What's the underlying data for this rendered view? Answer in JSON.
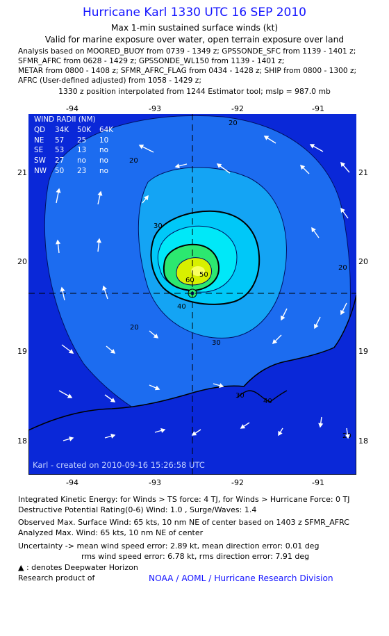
{
  "title": "Hurricane Karl 1330 UTC 16 SEP 2010",
  "subtitle1": "Max 1-min sustained surface winds (kt)",
  "subtitle2": "Valid for marine exposure over water, open terrain exposure over land",
  "analysis_lines": [
    "Analysis based on MOORED_BUOY from 0739 - 1349 z; GPSSONDE_SFC from 1139 - 1401 z;",
    "SFMR_AFRC from 0628 - 1429 z; GPSSONDE_WL150 from 1139 - 1401 z;",
    "METAR from 0800 - 1408 z; SFMR_AFRC_FLAG from 0434 - 1428 z; SHIP from 0800 - 1300 z;",
    "AFRC (User-defined adjusted) from 1058 - 1429 z;"
  ],
  "position_note": "1330 z position interpolated from 1244 Estimator tool; mslp = 987.0 mb",
  "map": {
    "lon_ticks": [
      "-94",
      "-93",
      "-92",
      "-91"
    ],
    "lat_ticks": [
      "21",
      "20",
      "19",
      "18"
    ],
    "contour_labels": [
      "20",
      "20",
      "30",
      "40",
      "50",
      "60",
      "20",
      "30",
      "40",
      "20",
      "30",
      "20"
    ],
    "created_label": "Karl - created on 2010-09-16 15:26:58 UTC",
    "wind_radii": {
      "title": "WIND RADII (NM)",
      "header": [
        "QD",
        "34K",
        "50K",
        "64K"
      ],
      "rows": [
        [
          "NE",
          "57",
          "25",
          "10"
        ],
        [
          "SE",
          "53",
          "13",
          "no"
        ],
        [
          "SW",
          "27",
          "no",
          "no"
        ],
        [
          "NW",
          "50",
          "23",
          "no"
        ]
      ]
    }
  },
  "footer": {
    "ike": "Integrated Kinetic Energy:  for Winds > TS force: 4 TJ,  for Winds > Hurricane Force: 0 TJ",
    "dpr": "Destructive Potential Rating(0-6)   Wind: 1.0 , Surge/Waves: 1.4",
    "observed": "Observed Max. Surface Wind: 65 kts, 10 nm NE of center based on 1403 z SFMR_AFRC",
    "analyzed": "Analyzed Max. Wind: 65 kts, 10 nm NE of center",
    "uncert1": "Uncertainty -> mean wind speed error: 2.89 kt,   mean direction error: 0.01 deg",
    "uncert2": "rms wind speed error: 6.78 kt,   rms direction error: 7.91 deg",
    "deepwater": ": denotes Deepwater Horizon",
    "research": "Research product of",
    "credit": "NOAA / AOML / Hurricane Research Division"
  },
  "colors": {
    "title": "#1414ff",
    "background_wind": "#0a28d8",
    "wind_20_30": "#1c6cf0",
    "wind_30_40": "#14a4f4",
    "wind_40_50": "#00e8f8",
    "wind_50_60": "#2ce870",
    "wind_60_65": "#d8f000"
  }
}
